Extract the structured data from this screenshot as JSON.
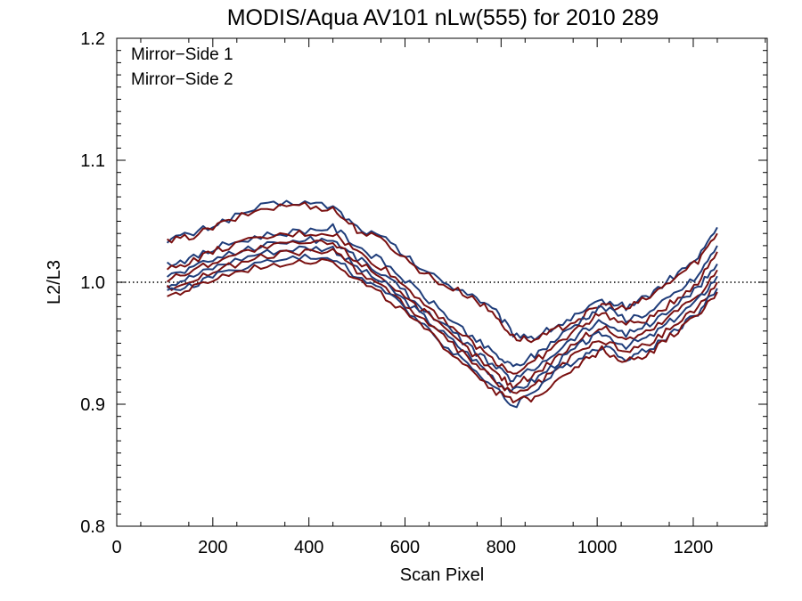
{
  "chart_data": {
    "type": "line",
    "title": "MODIS/Aqua AV101 nLw(555) for 2010 289",
    "xlabel": "Scan Pixel",
    "ylabel": "L2/L3",
    "xlim": [
      0,
      1354
    ],
    "ylim": [
      0.8,
      1.2
    ],
    "x_ticks": [
      0,
      200,
      400,
      600,
      800,
      1000,
      1200
    ],
    "y_ticks": [
      0.8,
      0.9,
      1.0,
      1.1,
      1.2
    ],
    "x_tick_labels": [
      "0",
      "200",
      "400",
      "600",
      "800",
      "1000",
      "1200"
    ],
    "y_tick_labels": [
      "0.8",
      "0.9",
      "1.0",
      "1.1",
      "1.2"
    ],
    "reference_line": 1.0,
    "grid": false,
    "legend_position": "top-left",
    "legend": [
      {
        "label": "Mirror−Side 1",
        "color": "#1f3d7a"
      },
      {
        "label": "Mirror−Side 2",
        "color": "#7a1010"
      }
    ],
    "x": [
      105,
      160,
      220,
      300,
      380,
      450,
      500,
      560,
      620,
      680,
      740,
      790,
      825,
      870,
      920,
      970,
      1010,
      1060,
      1110,
      1160,
      1210,
      1250
    ],
    "series": [
      {
        "mirror_side": 1,
        "values": [
          1.035,
          1.04,
          1.05,
          1.062,
          1.066,
          1.062,
          1.045,
          1.035,
          1.015,
          1.0,
          0.99,
          0.975,
          0.958,
          0.955,
          0.965,
          0.975,
          0.985,
          0.98,
          0.99,
          1.005,
          1.02,
          1.045
        ]
      },
      {
        "mirror_side": 2,
        "values": [
          1.033,
          1.038,
          1.048,
          1.06,
          1.064,
          1.06,
          1.043,
          1.033,
          1.013,
          0.998,
          0.988,
          0.972,
          0.955,
          0.952,
          0.962,
          0.972,
          0.982,
          0.978,
          0.988,
          1.003,
          1.018,
          1.04
        ]
      },
      {
        "mirror_side": 1,
        "values": [
          1.015,
          1.02,
          1.03,
          1.038,
          1.042,
          1.045,
          1.03,
          1.015,
          0.995,
          0.975,
          0.955,
          0.94,
          0.93,
          0.94,
          0.955,
          0.97,
          0.98,
          0.97,
          0.975,
          0.99,
          1.005,
          1.03
        ]
      },
      {
        "mirror_side": 2,
        "values": [
          1.01,
          1.018,
          1.028,
          1.036,
          1.04,
          1.04,
          1.025,
          1.01,
          0.99,
          0.97,
          0.95,
          0.935,
          0.925,
          0.935,
          0.95,
          0.965,
          0.975,
          0.965,
          0.97,
          0.985,
          1.0,
          1.025
        ]
      },
      {
        "mirror_side": 1,
        "values": [
          1.005,
          1.012,
          1.022,
          1.03,
          1.035,
          1.035,
          1.02,
          1.005,
          0.985,
          0.965,
          0.945,
          0.93,
          0.92,
          0.93,
          0.945,
          0.96,
          0.968,
          0.958,
          0.965,
          0.98,
          0.995,
          1.015
        ]
      },
      {
        "mirror_side": 2,
        "values": [
          1.002,
          1.01,
          1.02,
          1.028,
          1.032,
          1.032,
          1.018,
          1.002,
          0.982,
          0.962,
          0.942,
          0.925,
          0.915,
          0.925,
          0.94,
          0.955,
          0.963,
          0.953,
          0.96,
          0.975,
          0.99,
          1.01
        ]
      },
      {
        "mirror_side": 1,
        "values": [
          0.998,
          1.005,
          1.015,
          1.024,
          1.028,
          1.028,
          1.012,
          0.998,
          0.978,
          0.958,
          0.938,
          0.92,
          0.91,
          0.92,
          0.935,
          0.95,
          0.958,
          0.948,
          0.955,
          0.97,
          0.985,
          1.005
        ]
      },
      {
        "mirror_side": 2,
        "values": [
          0.995,
          1.002,
          1.012,
          1.02,
          1.025,
          1.025,
          1.01,
          0.995,
          0.975,
          0.955,
          0.935,
          0.918,
          0.908,
          0.915,
          0.93,
          0.945,
          0.953,
          0.943,
          0.95,
          0.965,
          0.98,
          1.0
        ]
      },
      {
        "mirror_side": 1,
        "values": [
          0.992,
          0.998,
          1.008,
          1.016,
          1.02,
          1.02,
          1.005,
          0.992,
          0.972,
          0.95,
          0.93,
          0.912,
          0.898,
          0.912,
          0.928,
          0.94,
          0.948,
          0.938,
          0.945,
          0.96,
          0.975,
          0.995
        ]
      },
      {
        "mirror_side": 2,
        "values": [
          0.988,
          0.995,
          1.005,
          1.013,
          1.018,
          1.018,
          1.002,
          0.988,
          0.968,
          0.948,
          0.928,
          0.91,
          0.902,
          0.905,
          0.922,
          0.935,
          0.945,
          0.935,
          0.942,
          0.958,
          0.972,
          0.992
        ]
      }
    ]
  }
}
